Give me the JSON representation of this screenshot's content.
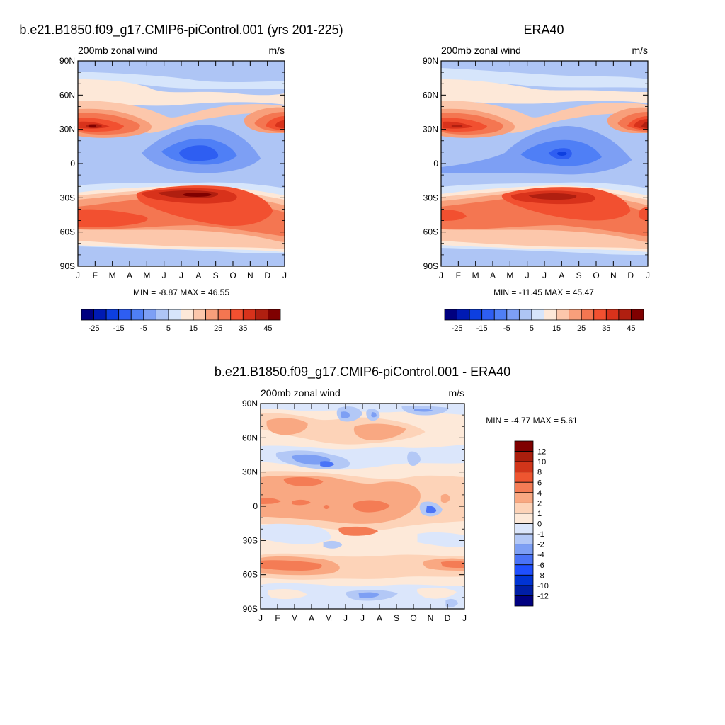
{
  "chart_data": [
    {
      "type": "heatmap",
      "title": "b.e21.B1850.f09_g17.CMIP6-piControl.001 (yrs 201-225)",
      "left_label": "200mb zonal wind",
      "right_label": "m/s",
      "x_tick_labels": [
        "J",
        "F",
        "M",
        "A",
        "M",
        "J",
        "J",
        "A",
        "S",
        "O",
        "N",
        "D",
        "J"
      ],
      "y_tick_labels": [
        "90N",
        "60N",
        "30N",
        "0",
        "30S",
        "60S",
        "90S"
      ],
      "y_tick_values": [
        90,
        60,
        30,
        0,
        -30,
        -60,
        -90
      ],
      "ylim": [
        -90,
        90
      ],
      "stats": "MIN =  -8.87 MAX =  46.55",
      "min": -8.87,
      "max": 46.55,
      "levels": [
        -30,
        -25,
        -20,
        -15,
        -10,
        -5,
        0,
        5,
        10,
        15,
        20,
        25,
        30,
        35,
        40,
        45
      ],
      "colorbar_labels": [
        "-25",
        "-15",
        "-5",
        "5",
        "15",
        "25",
        "35",
        "45"
      ],
      "features": [
        {
          "month": 1.5,
          "lat": 30,
          "value": 46
        },
        {
          "month": 7.5,
          "lat": -30,
          "value": 45
        },
        {
          "month": 7.5,
          "lat": 15,
          "value": -8
        },
        {
          "month": 12.5,
          "lat": 30,
          "value": 42
        }
      ]
    },
    {
      "type": "heatmap",
      "title": "ERA40",
      "left_label": "200mb zonal wind",
      "right_label": "m/s",
      "x_tick_labels": [
        "J",
        "F",
        "M",
        "A",
        "M",
        "J",
        "J",
        "A",
        "S",
        "O",
        "N",
        "D",
        "J"
      ],
      "y_tick_labels": [
        "90N",
        "60N",
        "30N",
        "0",
        "30S",
        "60S",
        "90S"
      ],
      "y_tick_values": [
        90,
        60,
        30,
        0,
        -30,
        -60,
        -90
      ],
      "ylim": [
        -90,
        90
      ],
      "stats": "MIN =  -11.45 MAX =  45.47",
      "min": -11.45,
      "max": 45.47,
      "levels": [
        -30,
        -25,
        -20,
        -15,
        -10,
        -5,
        0,
        5,
        10,
        15,
        20,
        25,
        30,
        35,
        40,
        45
      ],
      "colorbar_labels": [
        "-25",
        "-15",
        "-5",
        "5",
        "15",
        "25",
        "35",
        "45"
      ],
      "features": [
        {
          "month": 1.5,
          "lat": 30,
          "value": 45
        },
        {
          "month": 7.5,
          "lat": -30,
          "value": 42
        },
        {
          "month": 7.5,
          "lat": 15,
          "value": -11
        },
        {
          "month": 12.5,
          "lat": 30,
          "value": 43
        }
      ]
    },
    {
      "type": "heatmap",
      "title": "b.e21.B1850.f09_g17.CMIP6-piControl.001 - ERA40",
      "left_label": "200mb zonal wind",
      "right_label": "m/s",
      "x_tick_labels": [
        "J",
        "F",
        "M",
        "A",
        "M",
        "J",
        "J",
        "A",
        "S",
        "O",
        "N",
        "D",
        "J"
      ],
      "y_tick_labels": [
        "90N",
        "60N",
        "30N",
        "0",
        "30S",
        "60S",
        "90S"
      ],
      "y_tick_values": [
        90,
        60,
        30,
        0,
        -30,
        -60,
        -90
      ],
      "ylim": [
        -90,
        90
      ],
      "stats": "MIN =  -4.77 MAX =   5.61",
      "min": -4.77,
      "max": 5.61,
      "levels": [
        -12,
        -10,
        -8,
        -6,
        -4,
        -2,
        -1,
        0,
        1,
        2,
        4,
        6,
        8,
        10,
        12
      ],
      "colorbar_labels": [
        "12",
        "10",
        "8",
        "6",
        "4",
        "2",
        "1",
        "0",
        "-1",
        "-2",
        "-4",
        "-6",
        "-8",
        "-10",
        "-12"
      ]
    }
  ],
  "colors": {
    "main_palette": [
      "#00007f",
      "#001ab3",
      "#0d3fe0",
      "#2e5ef2",
      "#4f7ff6",
      "#7d9ff4",
      "#aec5f5",
      "#d6e5fb",
      "#fde8d8",
      "#fcc7ab",
      "#f89f7b",
      "#f47651",
      "#f25030",
      "#d8321b",
      "#b01f10",
      "#7f0000"
    ],
    "diff_palette": [
      "#000080",
      "#001ea6",
      "#0033d4",
      "#1f4fff",
      "#4a73f7",
      "#7d9ff4",
      "#b3c8f6",
      "#dbe6fb",
      "#fde9d9",
      "#fdd3b8",
      "#f9a882",
      "#f47c55",
      "#ee5530",
      "#d1351a",
      "#aa1e0d",
      "#7f0000"
    ]
  }
}
